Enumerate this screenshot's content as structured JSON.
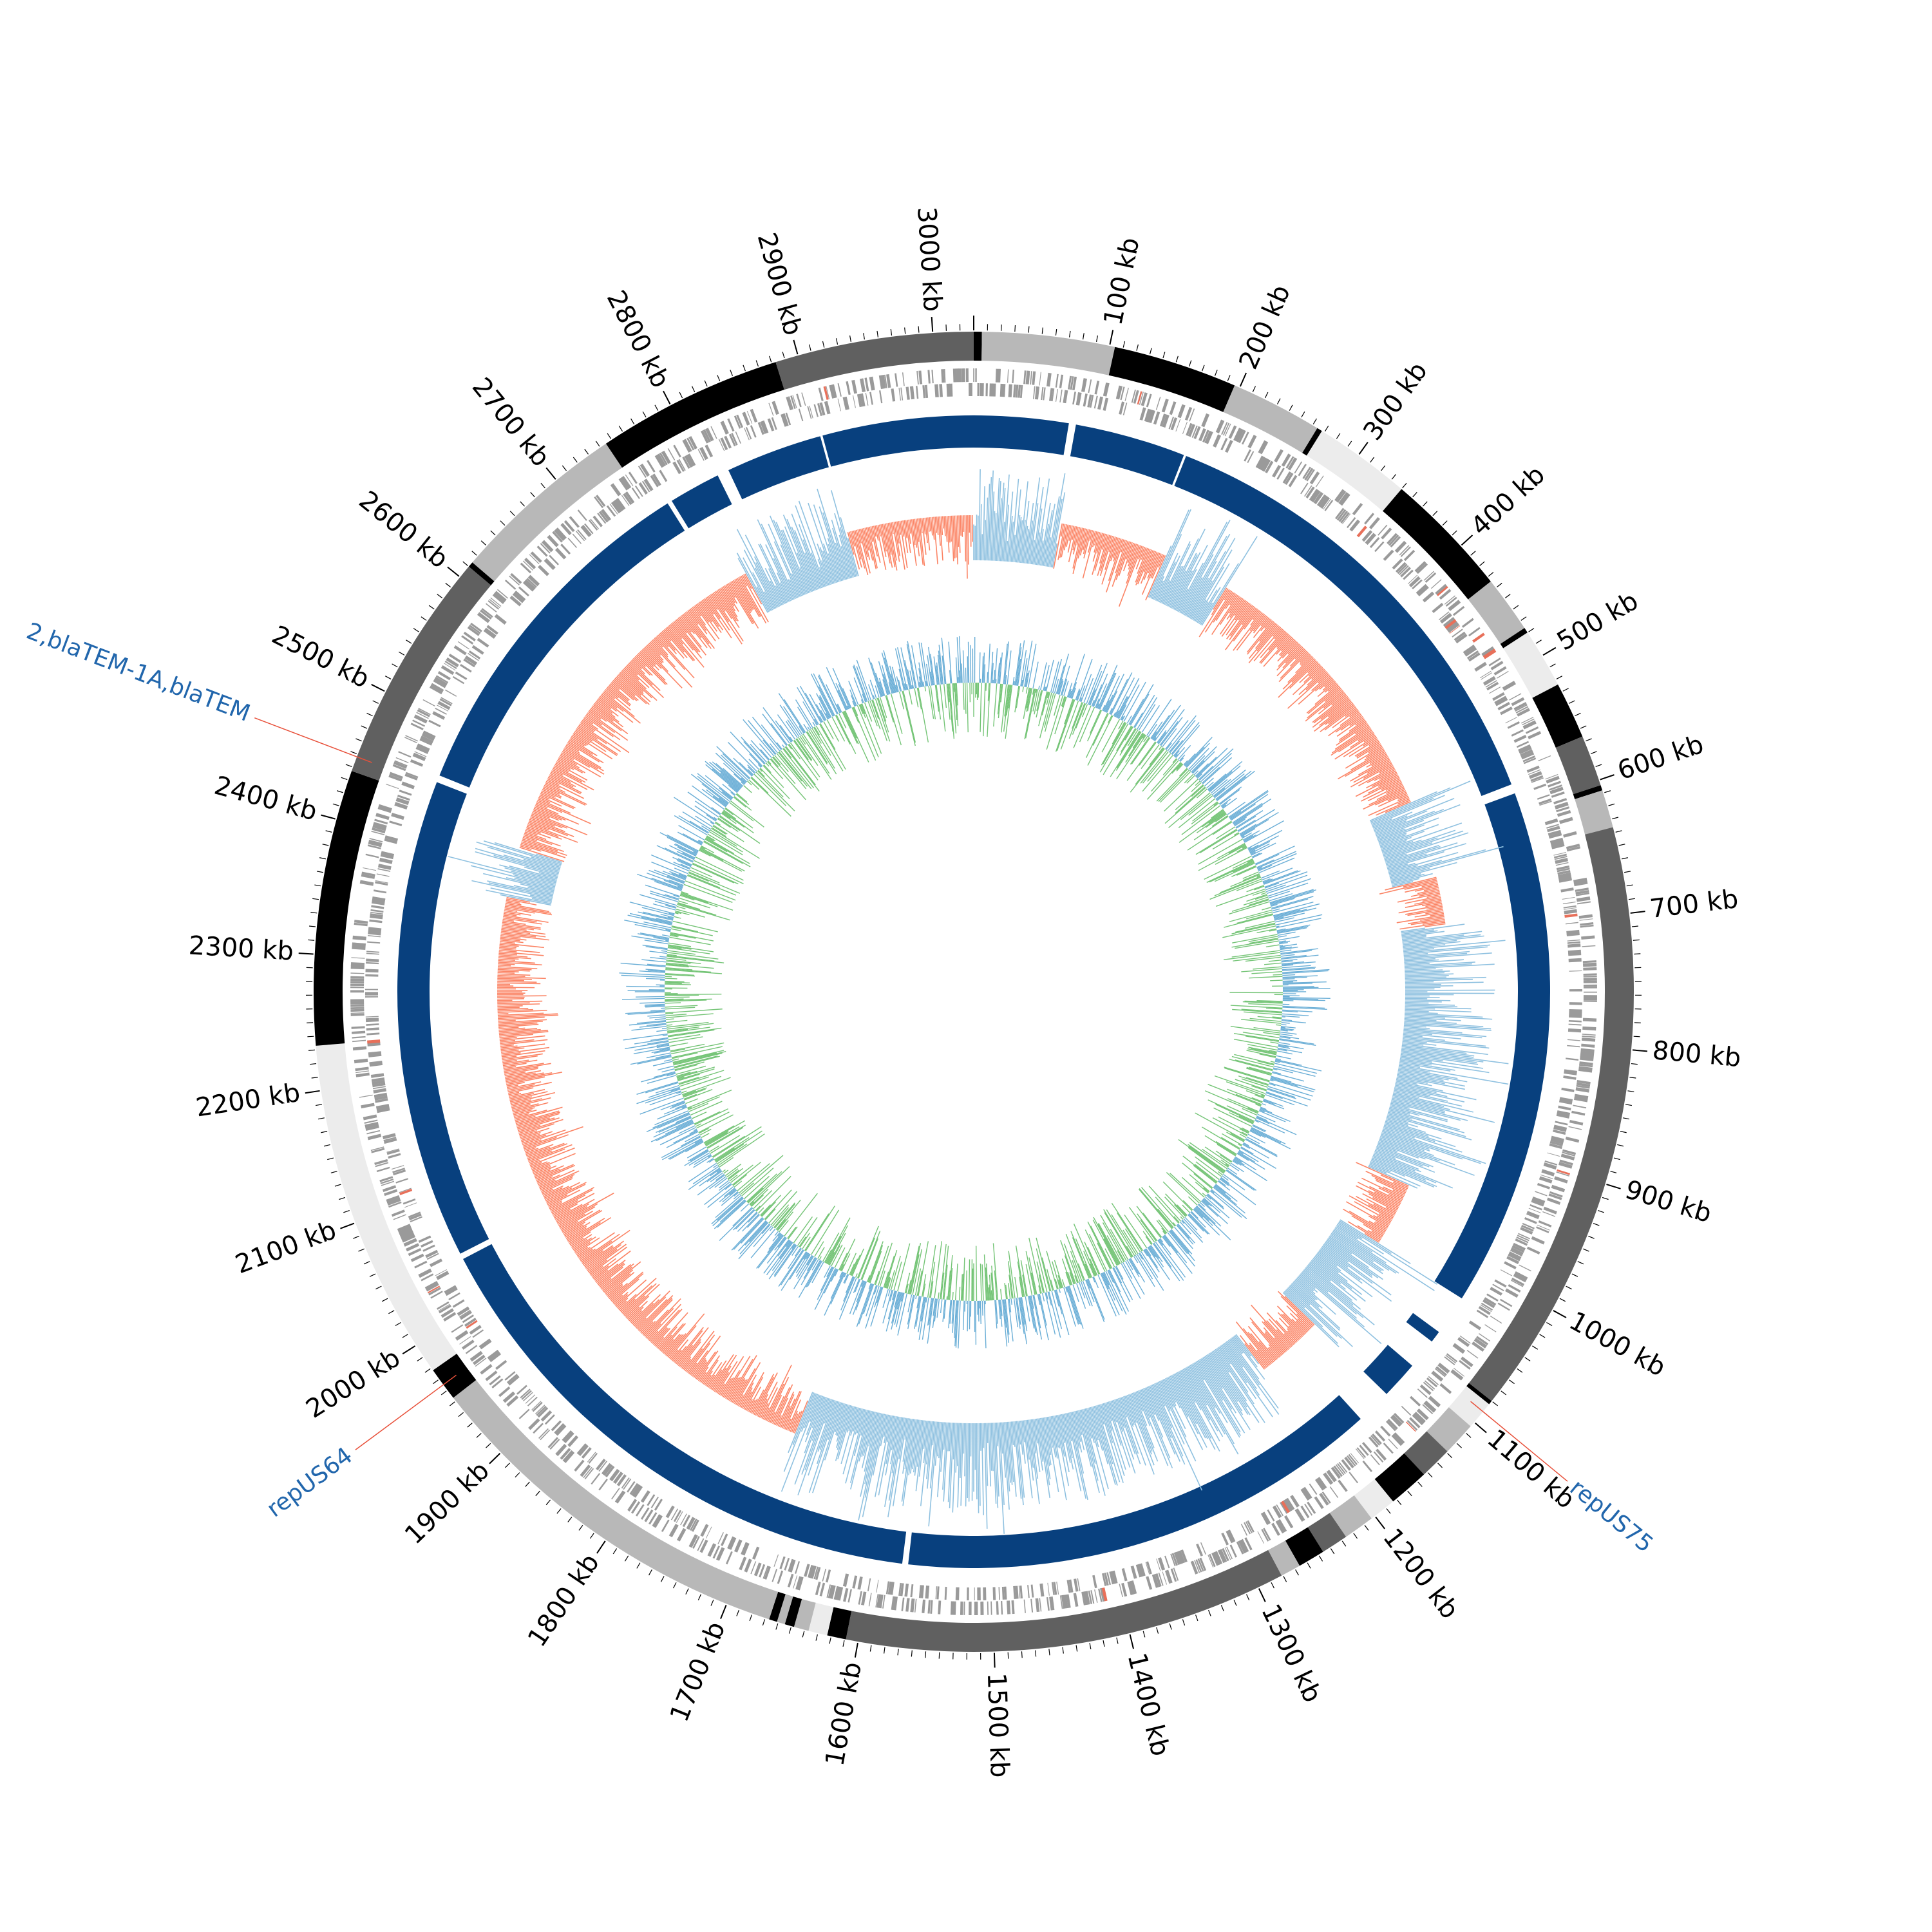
{
  "genome": {
    "length_kb": 3030,
    "tick_step_kb": 100,
    "tick_unit": "kb"
  },
  "colors": {
    "backbone_black": "#000000",
    "backbone_dark": "#606060",
    "backbone_mid": "#b8b8b8",
    "backbone_light": "#ececec",
    "cds": "#9a9a9a",
    "cds_red": "#e8705a",
    "blocks": "#08407e",
    "gc_skew_pos": "#fb8465",
    "gc_skew_neg": "#8fc1e0",
    "gc_content_outer": "#6aaed6",
    "gc_content_inner": "#74c476",
    "annotation_text": "#2166ac",
    "annotation_line": "#e8503a"
  },
  "backbone_segments": [
    {
      "start": 0,
      "end": 6,
      "shade": "black"
    },
    {
      "start": 6,
      "end": 104,
      "shade": "mid"
    },
    {
      "start": 104,
      "end": 196,
      "shade": "black"
    },
    {
      "start": 196,
      "end": 264,
      "shade": "mid"
    },
    {
      "start": 264,
      "end": 268,
      "shade": "black"
    },
    {
      "start": 268,
      "end": 340,
      "shade": "light"
    },
    {
      "start": 340,
      "end": 434,
      "shade": "black"
    },
    {
      "start": 434,
      "end": 476,
      "shade": "mid"
    },
    {
      "start": 476,
      "end": 480,
      "shade": "black"
    },
    {
      "start": 480,
      "end": 524,
      "shade": "light"
    },
    {
      "start": 524,
      "end": 566,
      "shade": "black"
    },
    {
      "start": 566,
      "end": 604,
      "shade": "dark"
    },
    {
      "start": 604,
      "end": 608,
      "shade": "black"
    },
    {
      "start": 608,
      "end": 636,
      "shade": "mid"
    },
    {
      "start": 636,
      "end": 1080,
      "shade": "dark"
    },
    {
      "start": 1080,
      "end": 1083,
      "shade": "black"
    },
    {
      "start": 1083,
      "end": 1104,
      "shade": "light"
    },
    {
      "start": 1104,
      "end": 1129,
      "shade": "mid"
    },
    {
      "start": 1129,
      "end": 1153,
      "shade": "dark"
    },
    {
      "start": 1153,
      "end": 1183,
      "shade": "black"
    },
    {
      "start": 1183,
      "end": 1203,
      "shade": "light"
    },
    {
      "start": 1203,
      "end": 1226,
      "shade": "mid"
    },
    {
      "start": 1226,
      "end": 1246,
      "shade": "dark"
    },
    {
      "start": 1246,
      "end": 1266,
      "shade": "black"
    },
    {
      "start": 1266,
      "end": 1281,
      "shade": "mid"
    },
    {
      "start": 1281,
      "end": 1609,
      "shade": "dark"
    },
    {
      "start": 1609,
      "end": 1623,
      "shade": "black"
    },
    {
      "start": 1623,
      "end": 1637,
      "shade": "light"
    },
    {
      "start": 1637,
      "end": 1648,
      "shade": "mid"
    },
    {
      "start": 1648,
      "end": 1655,
      "shade": "black"
    },
    {
      "start": 1655,
      "end": 1661,
      "shade": "mid"
    },
    {
      "start": 1661,
      "end": 1667,
      "shade": "black"
    },
    {
      "start": 1667,
      "end": 1953,
      "shade": "mid"
    },
    {
      "start": 1953,
      "end": 1978,
      "shade": "black"
    },
    {
      "start": 1978,
      "end": 2233,
      "shade": "light"
    },
    {
      "start": 2233,
      "end": 2437,
      "shade": "black"
    },
    {
      "start": 2437,
      "end": 2610,
      "shade": "dark"
    },
    {
      "start": 2610,
      "end": 2614,
      "shade": "black"
    },
    {
      "start": 2614,
      "end": 2745,
      "shade": "mid"
    },
    {
      "start": 2745,
      "end": 2883,
      "shade": "black"
    },
    {
      "start": 2883,
      "end": 3030,
      "shade": "dark"
    }
  ],
  "alignment_blocks": [
    {
      "start": 0,
      "end": 80
    },
    {
      "start": 86,
      "end": 180
    },
    {
      "start": 182,
      "end": 580
    },
    {
      "start": 588,
      "end": 1028
    },
    {
      "start": 1062,
      "end": 1072
    },
    {
      "start": 1098,
      "end": 1130
    },
    {
      "start": 1160,
      "end": 1570
    },
    {
      "start": 1575,
      "end": 2040
    },
    {
      "start": 2045,
      "end": 2452
    },
    {
      "start": 2458,
      "end": 2760
    },
    {
      "start": 2764,
      "end": 2808
    },
    {
      "start": 2818,
      "end": 2900
    },
    {
      "start": 2902,
      "end": 3030
    }
  ],
  "gc_skew_negative_regions": [
    {
      "start": 0,
      "end": 90
    },
    {
      "start": 200,
      "end": 270
    },
    {
      "start": 560,
      "end": 640
    },
    {
      "start": 690,
      "end": 960
    },
    {
      "start": 1025,
      "end": 1130
    },
    {
      "start": 1200,
      "end": 1700
    },
    {
      "start": 2370,
      "end": 2420
    },
    {
      "start": 2790,
      "end": 2900
    }
  ],
  "annotations": [
    {
      "label": "repUS75",
      "position_kb": 1090
    },
    {
      "label": "repUS64",
      "position_kb": 1965
    },
    {
      "label": "2,blaTEM-1A,blaTEM",
      "position_kb": 2448
    }
  ]
}
